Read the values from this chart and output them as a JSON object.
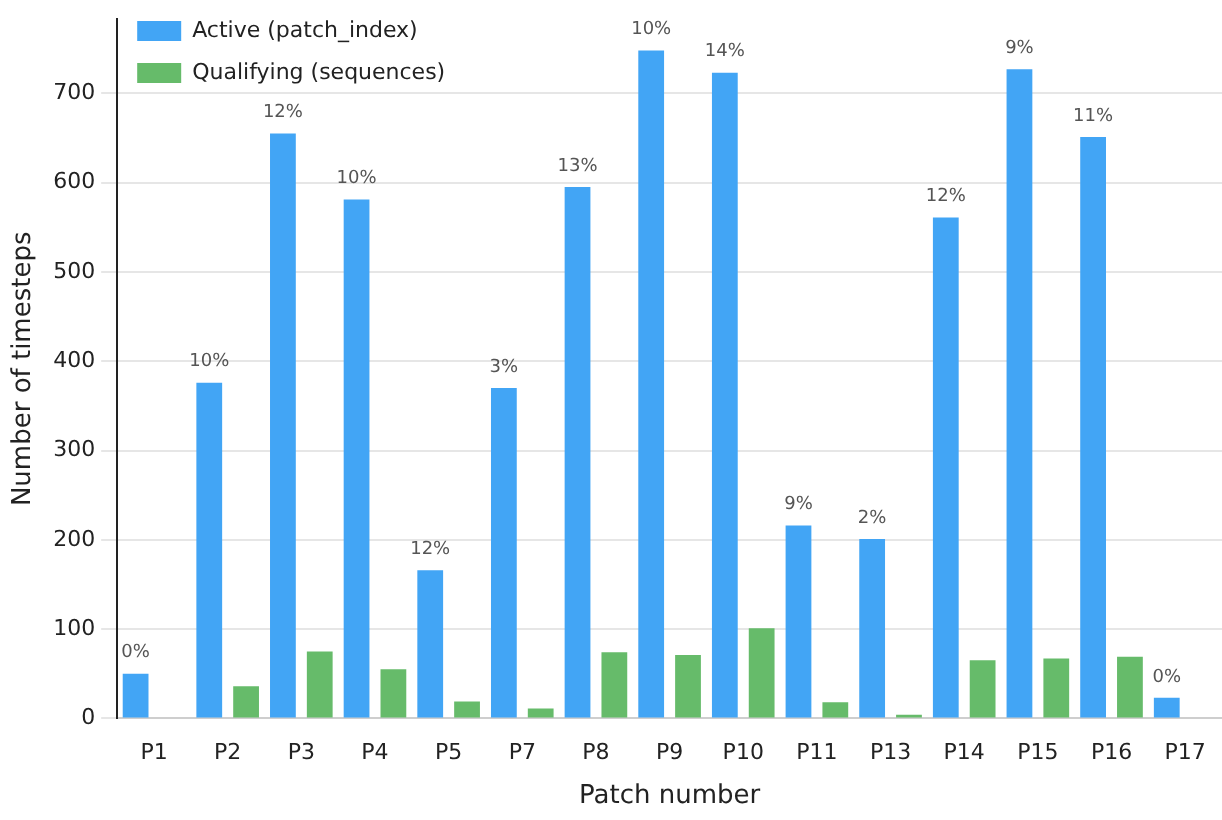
{
  "chart_data": {
    "type": "bar",
    "xlabel": "Patch number",
    "ylabel": "Number of timesteps",
    "categories": [
      "P1",
      "P2",
      "P3",
      "P4",
      "P5",
      "P7",
      "P8",
      "P9",
      "P10",
      "P11",
      "P13",
      "P14",
      "P15",
      "P16",
      "P17"
    ],
    "series": [
      {
        "name": "Active (patch_index)",
        "color": "#42a5f5",
        "values": [
          50,
          376,
          655,
          581,
          166,
          370,
          595,
          748,
          723,
          216,
          201,
          561,
          727,
          651,
          23
        ]
      },
      {
        "name": "Qualifying (sequences)",
        "color": "#66bb6a",
        "values": [
          0,
          36,
          75,
          55,
          19,
          11,
          74,
          71,
          101,
          18,
          4,
          65,
          67,
          69,
          0
        ]
      }
    ],
    "annotations": [
      {
        "text": "0%",
        "x": "P1",
        "y": 50
      },
      {
        "text": "10%",
        "x": "P2",
        "y": 376
      },
      {
        "text": "12%",
        "x": "P3",
        "y": 655
      },
      {
        "text": "10%",
        "x": "P4",
        "y": 581
      },
      {
        "text": "12%",
        "x": "P5",
        "y": 166
      },
      {
        "text": "3%",
        "x": "P7",
        "y": 370
      },
      {
        "text": "13%",
        "x": "P8",
        "y": 595
      },
      {
        "text": "10%",
        "x": "P9",
        "y": 748
      },
      {
        "text": "14%",
        "x": "P10",
        "y": 723
      },
      {
        "text": "9%",
        "x": "P11",
        "y": 216
      },
      {
        "text": "2%",
        "x": "P13",
        "y": 201
      },
      {
        "text": "12%",
        "x": "P14",
        "y": 561
      },
      {
        "text": "9%",
        "x": "P15",
        "y": 727
      },
      {
        "text": "11%",
        "x": "P16",
        "y": 651
      },
      {
        "text": "0%",
        "x": "P17",
        "y": 23
      }
    ],
    "ylim": [
      0,
      783
    ],
    "yticks": [
      0,
      100,
      200,
      300,
      400,
      500,
      600,
      700
    ],
    "grid": "y",
    "legend": "top left"
  }
}
